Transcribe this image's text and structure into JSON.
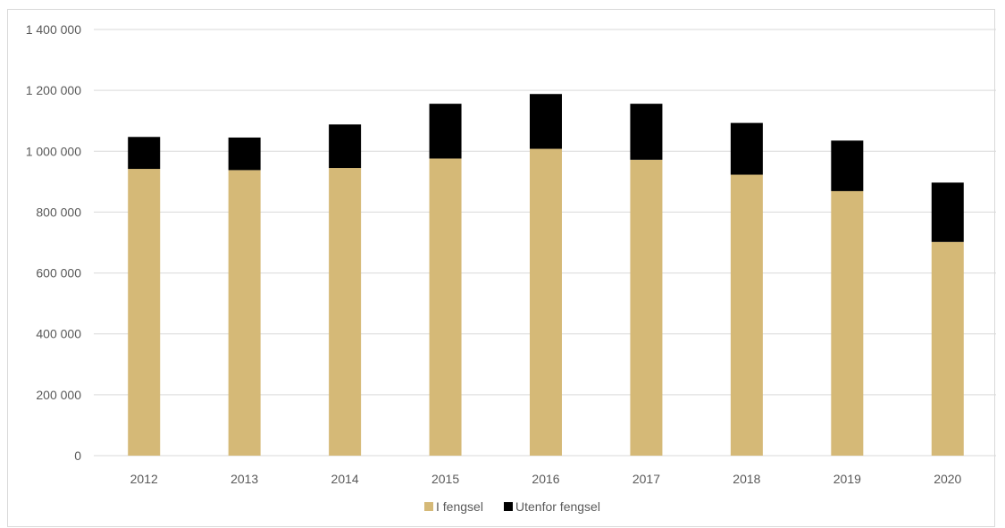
{
  "chart_data": {
    "type": "bar",
    "stacked": true,
    "categories": [
      "2012",
      "2013",
      "2014",
      "2015",
      "2016",
      "2017",
      "2018",
      "2019",
      "2020"
    ],
    "series": [
      {
        "name": "I fengsel",
        "color": "#d5b977",
        "values": [
          942000,
          938000,
          945000,
          976000,
          1008000,
          972000,
          923000,
          869000,
          702000
        ]
      },
      {
        "name": "Utenfor fengsel",
        "color": "#000000",
        "values": [
          105000,
          107000,
          143000,
          180000,
          180000,
          184000,
          170000,
          166000,
          195000
        ]
      }
    ],
    "ylim": [
      0,
      1400000
    ],
    "yticks": [
      0,
      200000,
      400000,
      600000,
      800000,
      1000000,
      1200000,
      1400000
    ],
    "ytick_labels": [
      "0",
      "200 000",
      "400 000",
      "600 000",
      "800 000",
      "1 000 000",
      "1 200 000",
      "1 400 000"
    ],
    "grid": true,
    "legend_position": "bottom",
    "gridline_color": "#d9d9d9",
    "text_color": "#595959"
  }
}
